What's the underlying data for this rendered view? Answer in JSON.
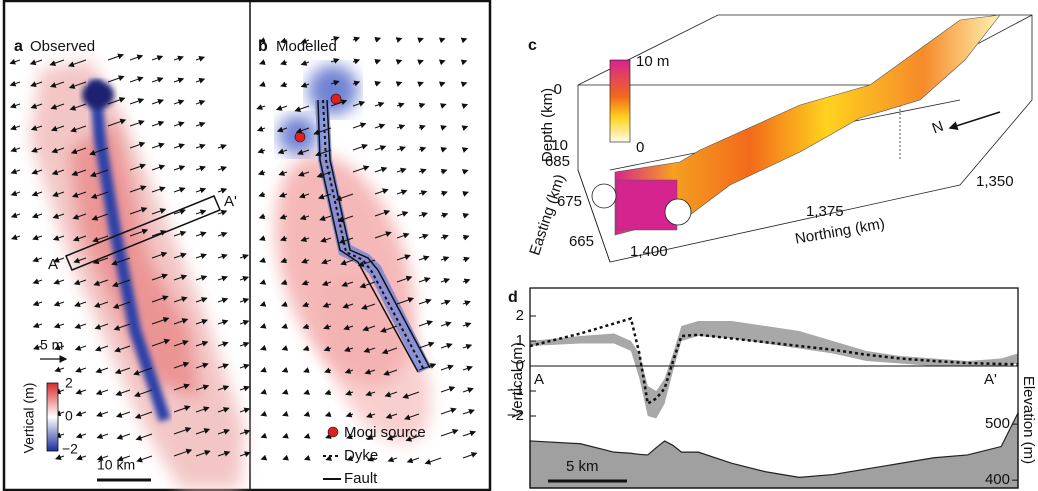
{
  "panel_a": {
    "label": "a",
    "title": "Observed",
    "arrow_scale": "5 m",
    "colorbar": {
      "label": "Vertical (m)",
      "ticks": [
        "2",
        "0",
        "−2"
      ]
    },
    "scale_bar": "10 km",
    "profile_start": "A",
    "profile_end": "A'"
  },
  "panel_b": {
    "label": "b",
    "title": "Modelled",
    "legend": [
      "Mogi source",
      "Dyke",
      "Fault"
    ]
  },
  "panel_c": {
    "label": "c",
    "colorbar": {
      "max": "10 m",
      "min": "0"
    },
    "depth_axis": {
      "label": "Depth (km)",
      "ticks": [
        "0",
        "10"
      ]
    },
    "easting_axis": {
      "label": "Easting (km)",
      "ticks": [
        "685",
        "675",
        "665"
      ]
    },
    "northing_axis": {
      "label": "Northing (km)",
      "ticks": [
        "1,400",
        "1,375",
        "1,350"
      ]
    },
    "north_arrow": "N"
  },
  "chart_data": {
    "type": "line",
    "panel_label": "d",
    "ylabel": "Vertical (m)",
    "y2label": "Elevation (m)",
    "annotations": [
      "A",
      "A'"
    ],
    "scale_bar": "5 km",
    "x": [
      0,
      3,
      5,
      6,
      6.5,
      7,
      7.5,
      8,
      8.5,
      9,
      10,
      12,
      14,
      16,
      18,
      20,
      22,
      24,
      26,
      28,
      29
    ],
    "xlim": [
      0,
      29
    ],
    "ylim": [
      -4.88,
      3.12
    ],
    "yticks": [
      {
        "value": -2,
        "label": "−2"
      },
      {
        "value": -1,
        "label": "−1"
      },
      0,
      1,
      2
    ],
    "y2lim": [
      386,
      743
    ],
    "y2ticks": [
      400,
      500
    ],
    "band": {
      "color": "#a8a8a8",
      "high": [
        1.0,
        1.2,
        1.3,
        1.0,
        0.5,
        -0.8,
        -1.0,
        -0.5,
        0.5,
        1.6,
        1.8,
        1.8,
        1.6,
        1.4,
        1.0,
        0.6,
        0.4,
        0.3,
        0.2,
        0.3,
        0.5
      ],
      "low": [
        0.8,
        0.9,
        0.9,
        0.6,
        -0.5,
        -2.0,
        -2.1,
        -1.5,
        -0.2,
        1.0,
        1.2,
        1.1,
        0.9,
        0.7,
        0.5,
        0.2,
        0.1,
        0.0,
        0.0,
        0.0,
        0.1
      ]
    },
    "series": [
      {
        "color": "#111111",
        "dash": true,
        "values": [
          0.8,
          1.3,
          1.7,
          1.9,
          0.5,
          -1.5,
          -1.3,
          -0.9,
          0.2,
          1.2,
          1.25,
          1.1,
          0.95,
          0.8,
          0.65,
          0.45,
          0.3,
          0.2,
          0.12,
          0.08,
          0.07
        ]
      },
      {
        "color": "#a0a0a0",
        "axis": "y2",
        "fill": true,
        "values": [
          470,
          465,
          450,
          448,
          446,
          445,
          458,
          470,
          462,
          450,
          450,
          430,
          415,
          405,
          410,
          420,
          430,
          440,
          445,
          460,
          520
        ]
      }
    ]
  }
}
